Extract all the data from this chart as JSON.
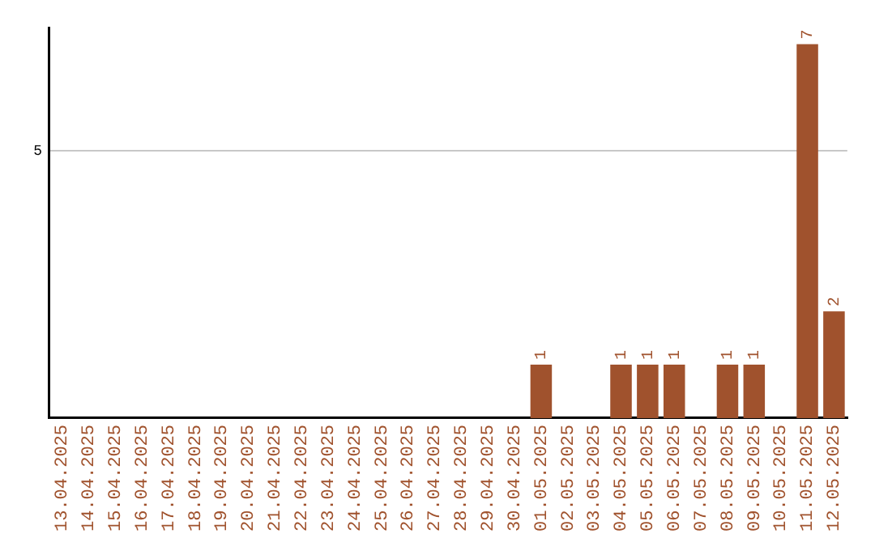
{
  "chart_data": {
    "type": "bar",
    "categories": [
      "13.04.2025",
      "14.04.2025",
      "15.04.2025",
      "16.04.2025",
      "17.04.2025",
      "18.04.2025",
      "19.04.2025",
      "20.04.2025",
      "21.04.2025",
      "22.04.2025",
      "23.04.2025",
      "24.04.2025",
      "25.04.2025",
      "26.04.2025",
      "27.04.2025",
      "28.04.2025",
      "29.04.2025",
      "30.04.2025",
      "01.05.2025",
      "02.05.2025",
      "03.05.2025",
      "04.05.2025",
      "05.05.2025",
      "06.05.2025",
      "07.05.2025",
      "08.05.2025",
      "09.05.2025",
      "10.05.2025",
      "11.05.2025",
      "12.05.2025"
    ],
    "values": [
      null,
      null,
      null,
      null,
      null,
      null,
      null,
      null,
      null,
      null,
      null,
      null,
      null,
      null,
      null,
      null,
      null,
      null,
      1,
      null,
      null,
      1,
      1,
      1,
      null,
      1,
      1,
      null,
      7,
      2
    ],
    "data_labels": true,
    "color": "#a0522d",
    "ylim": [
      0,
      7.3
    ],
    "yticks": [
      5
    ],
    "grid": "y",
    "legend": false
  }
}
